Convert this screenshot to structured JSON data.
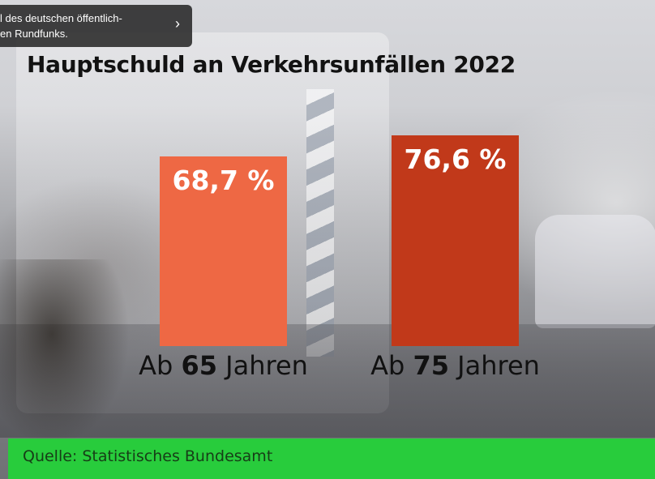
{
  "tooltip": {
    "line1": "l des deutschen öffentlich-",
    "line2": "en Rundfunks.",
    "icon": "chevron-right-icon"
  },
  "source": "Quelle: Statistisches Bundesamt",
  "colors": {
    "bar1": "#ee6844",
    "bar2": "#c1391a",
    "footer": "#28cc3c"
  },
  "chart_data": {
    "type": "bar",
    "title": "Hauptschuld an Verkehrsunfällen 2022",
    "categories": [
      "Ab 65 Jahren",
      "Ab 75 Jahren"
    ],
    "category_parts": [
      {
        "prefix": "Ab ",
        "bold": "65",
        "suffix": " Jahren"
      },
      {
        "prefix": "Ab ",
        "bold": "75",
        "suffix": " Jahren"
      }
    ],
    "values": [
      68.7,
      76.6
    ],
    "value_labels": [
      "68,7 %",
      "76,6 %"
    ],
    "ylim": [
      0,
      100
    ]
  }
}
